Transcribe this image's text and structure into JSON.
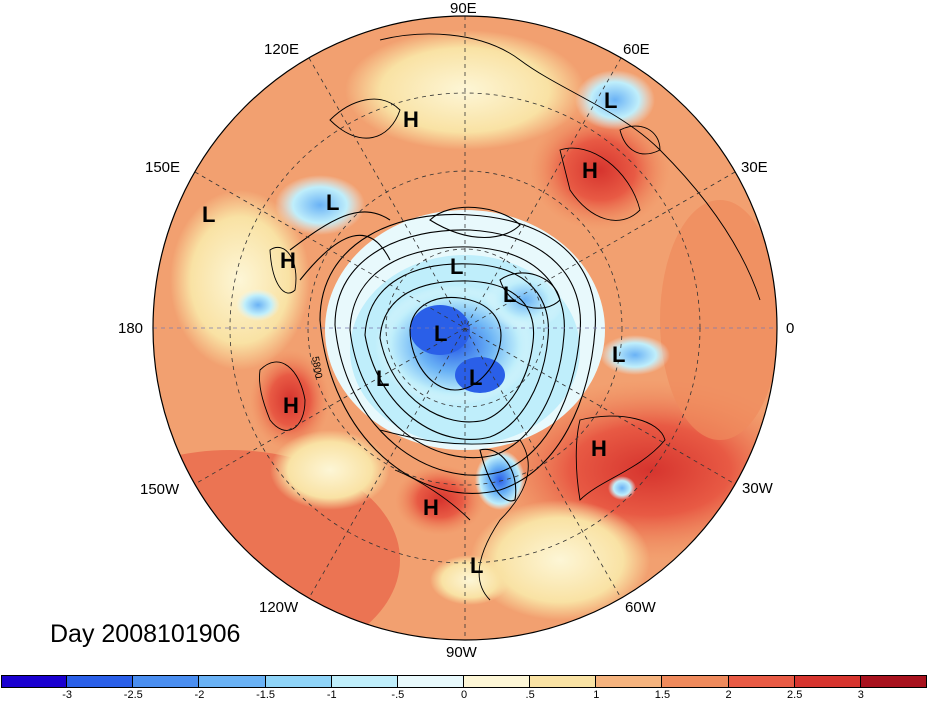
{
  "map": {
    "longitude_labels": [
      "90E",
      "60E",
      "30E",
      "0",
      "30W",
      "60W",
      "90W",
      "120W",
      "150W",
      "180",
      "150E",
      "120E"
    ],
    "contour_label": "5800",
    "pressure_centers": [
      {
        "symbol": "H",
        "id": "h-siberia-north"
      },
      {
        "symbol": "L",
        "id": "l-central-asia"
      },
      {
        "symbol": "H",
        "id": "h-ural"
      },
      {
        "symbol": "L",
        "id": "l-east-asia"
      },
      {
        "symbol": "L",
        "id": "l-west-pacific"
      },
      {
        "symbol": "H",
        "id": "h-kamchatka"
      },
      {
        "symbol": "L",
        "id": "l-arctic-siberia"
      },
      {
        "symbol": "L",
        "id": "l-arctic-europe"
      },
      {
        "symbol": "L",
        "id": "l-arctic-canada"
      },
      {
        "symbol": "L",
        "id": "l-hudson"
      },
      {
        "symbol": "L",
        "id": "l-alaska"
      },
      {
        "symbol": "L",
        "id": "l-europe"
      },
      {
        "symbol": "H",
        "id": "h-east-pacific"
      },
      {
        "symbol": "H",
        "id": "h-atlantic"
      },
      {
        "symbol": "H",
        "id": "h-us-south"
      },
      {
        "symbol": "L",
        "id": "l-central-america"
      }
    ]
  },
  "date_label": "Day 2008101906",
  "colorbar": {
    "colors": [
      "#1a00d0",
      "#2a5fe8",
      "#4a8ef0",
      "#6ab2f5",
      "#8fd4f8",
      "#bfeefb",
      "#e8f9fc",
      "#fdf6d6",
      "#f9e2a4",
      "#f5b37e",
      "#ef8a5c",
      "#e85a44",
      "#d6342e",
      "#a8121e"
    ],
    "labels": [
      "-3",
      "-2.5",
      "-2",
      "-1.5",
      "-1",
      "-.5",
      "0",
      ".5",
      "1",
      "1.5",
      "2",
      "2.5",
      "3"
    ]
  }
}
